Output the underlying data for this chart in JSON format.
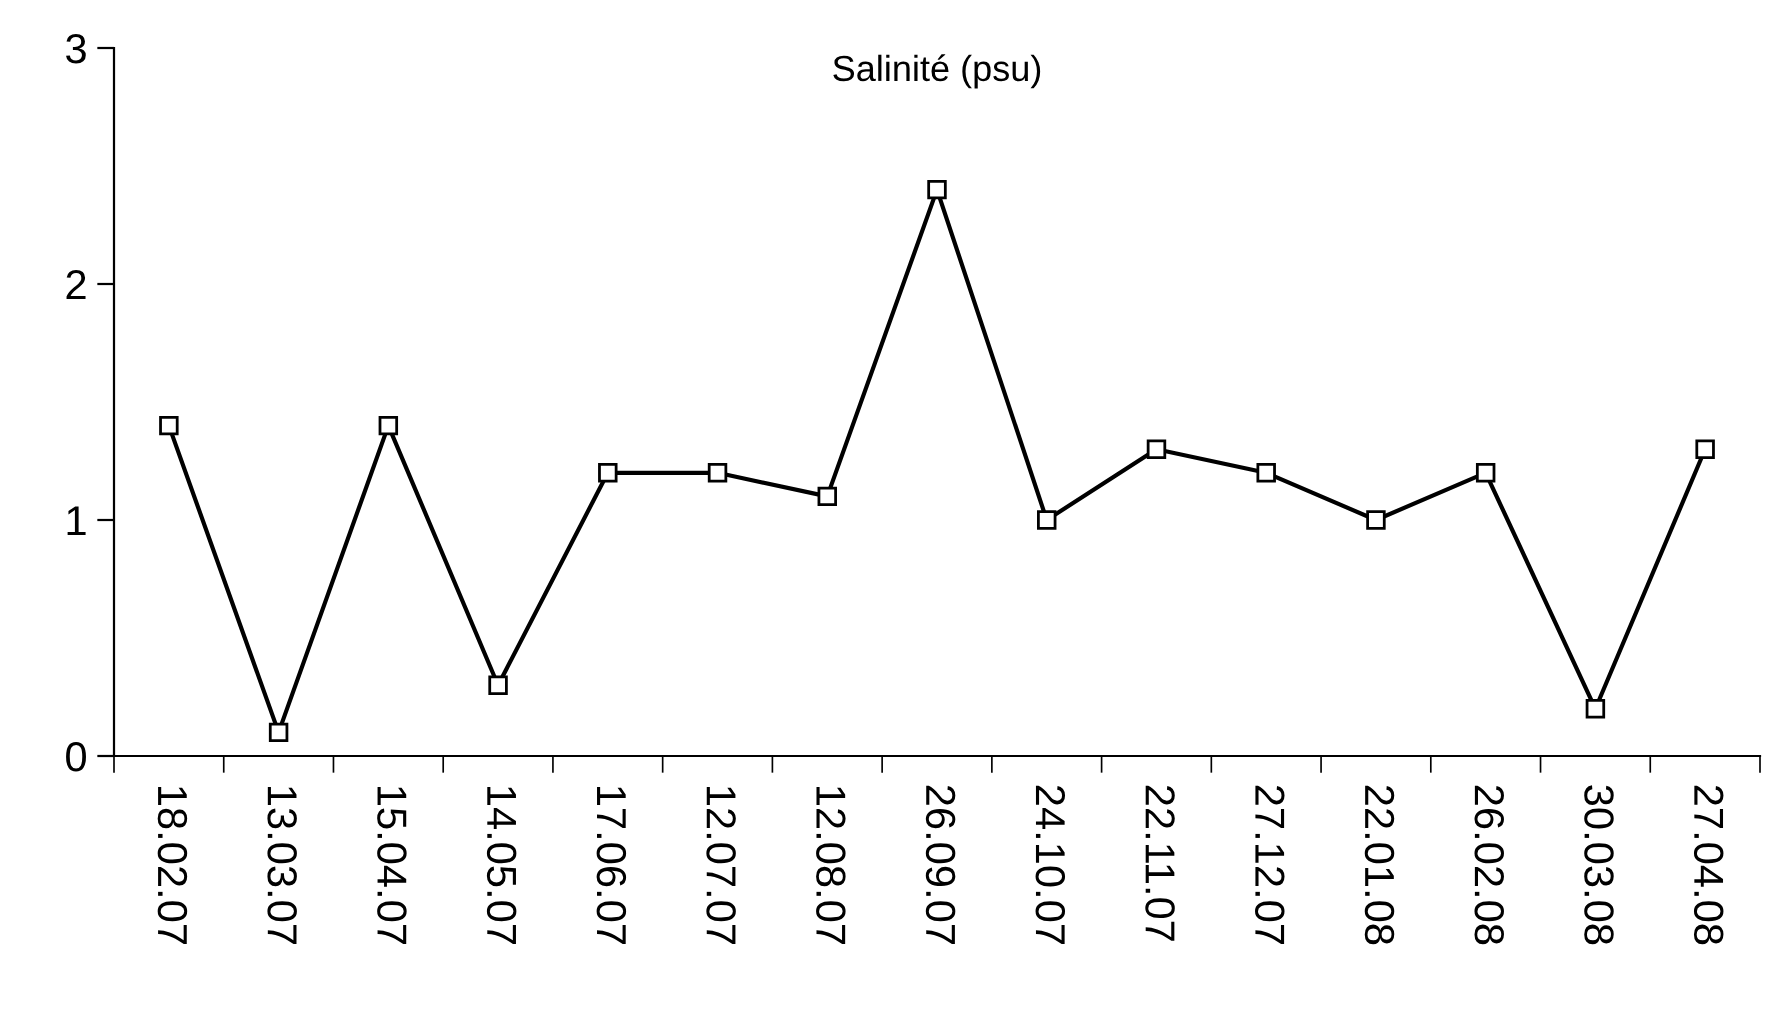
{
  "chart_data": {
    "type": "line",
    "title": "Salinité (psu)",
    "categories": [
      "18.02.07",
      "13.03.07",
      "15.04.07",
      "14.05.07",
      "17.06.07",
      "12.07.07",
      "12.08.07",
      "26.09.07",
      "24.10.07",
      "22.11.07",
      "27.12.07",
      "22.01.08",
      "26.02.08",
      "30.03.08",
      "27.04.08"
    ],
    "series": [
      {
        "color": "#000000",
        "values": [
          1.4,
          0.1,
          1.4,
          0.3,
          1.2,
          1.2,
          1.1,
          2.4,
          1.0,
          1.3,
          1.2,
          1.0,
          1.2,
          0.2,
          1.3
        ]
      }
    ],
    "ylim": [
      0,
      3
    ],
    "yticks": [
      0,
      1,
      2,
      3
    ],
    "grid": false,
    "legend": false,
    "marker": "square",
    "line_style": "solid"
  }
}
